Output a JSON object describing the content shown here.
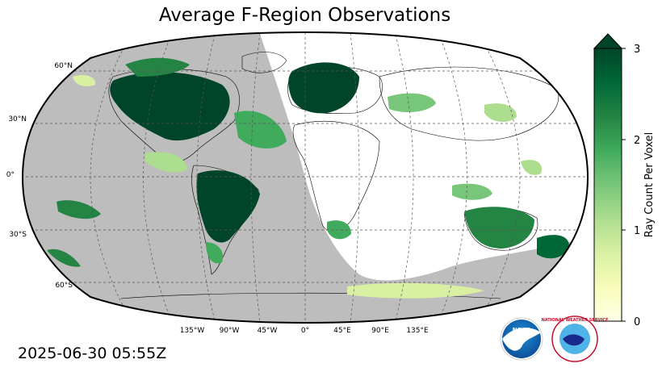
{
  "title": "Average F-Region Observations",
  "timestamp": "2025-06-30 05:55Z",
  "map": {
    "projection": "Robinson",
    "latitude_labels": [
      "60°N",
      "30°N",
      "0°",
      "30°S",
      "60°S"
    ],
    "longitude_labels": [
      "135°W",
      "90°W",
      "45°W",
      "0°",
      "45°E",
      "90°E",
      "135°E"
    ],
    "night_shade_color": "#bdbdbd",
    "ocean_color": "#ffffff",
    "gridline_style": "dashed",
    "observation_regions": [
      {
        "region": "North America",
        "level": 3
      },
      {
        "region": "Northern Europe",
        "level": 3
      },
      {
        "region": "South America",
        "level": 3
      },
      {
        "region": "Australia",
        "level": 2.5
      },
      {
        "region": "Greenland / Arctic",
        "level": 1.5
      },
      {
        "region": "East Asia",
        "level": 1.5
      },
      {
        "region": "Southern Africa",
        "level": 1
      },
      {
        "region": "Antarctica edge",
        "level": 0.5
      }
    ]
  },
  "colorbar": {
    "label": "Ray Count Per Voxel",
    "min": 0,
    "max": 3,
    "ticks": [
      "0",
      "1",
      "2",
      "3"
    ],
    "extend": "max",
    "colormap": "YlGn",
    "colors": [
      "#ffffe5",
      "#f7fcb9",
      "#d9f0a3",
      "#addd8e",
      "#78c679",
      "#41ab5d",
      "#238443",
      "#006837",
      "#004529"
    ]
  },
  "logos": {
    "noaa": {
      "text": "NOAA",
      "icon": "noaa-logo"
    },
    "nws": {
      "text": "NATIONAL WEATHER SERVICE",
      "icon": "nws-logo"
    }
  }
}
